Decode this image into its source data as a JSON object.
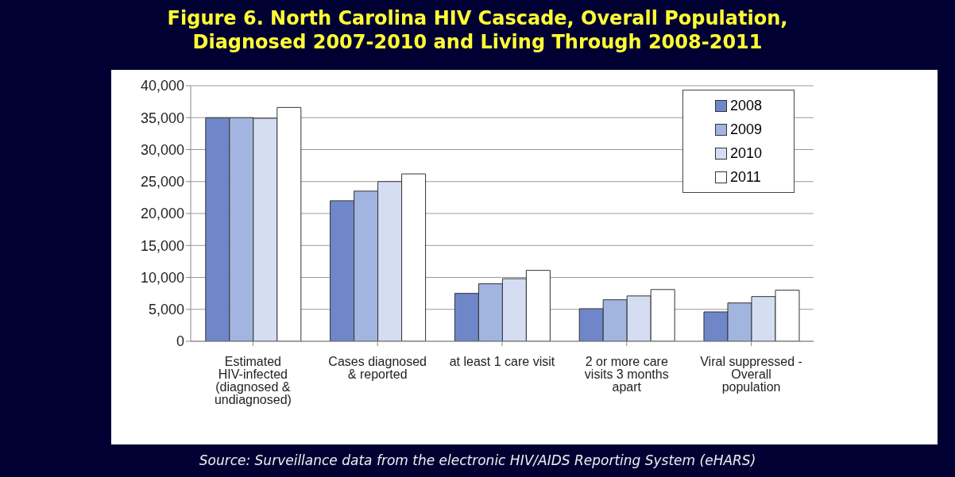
{
  "chart_data": {
    "type": "bar",
    "title": "Figure 6. North Carolina HIV Cascade, Overall Population, Diagnosed 2007-2010 and Living Through 2008-2011",
    "categories": [
      "Estimated HIV-infected (diagnosed & undiagnosed)",
      "Cases diagnosed & reported",
      "at least 1 care visit",
      "2 or more care visits 3 months apart",
      "Viral suppressed - Overall population"
    ],
    "series": [
      {
        "name": "2008",
        "color": "#6f87c9",
        "values": [
          35000,
          22000,
          7500,
          5100,
          4600
        ]
      },
      {
        "name": "2009",
        "color": "#a2b5e0",
        "values": [
          35000,
          23500,
          9000,
          6500,
          6000
        ]
      },
      {
        "name": "2010",
        "color": "#d4ddf2",
        "values": [
          34900,
          25000,
          9800,
          7100,
          7000
        ]
      },
      {
        "name": "2011",
        "color": "#ffffff",
        "values": [
          36600,
          26200,
          11100,
          8100,
          8000
        ]
      }
    ],
    "ylim": [
      0,
      40000
    ],
    "yticks": [
      0,
      {
        "value": 5000,
        "label": "5,000"
      },
      {
        "value": 10000,
        "label": "10,000"
      },
      {
        "value": 15000,
        "label": "15,000"
      },
      {
        "value": 20000,
        "label": "20,000"
      },
      {
        "value": 25000,
        "label": "25,000"
      },
      {
        "value": 30000,
        "label": "30,000"
      },
      {
        "value": 35000,
        "label": "35,000"
      },
      {
        "value": 40000,
        "label": "40,000"
      }
    ],
    "grid": "y",
    "legend": "top right",
    "annotations": [
      "Source: Surveillance data from the electronic HIV/AIDS Reporting System (eHARS)"
    ]
  }
}
